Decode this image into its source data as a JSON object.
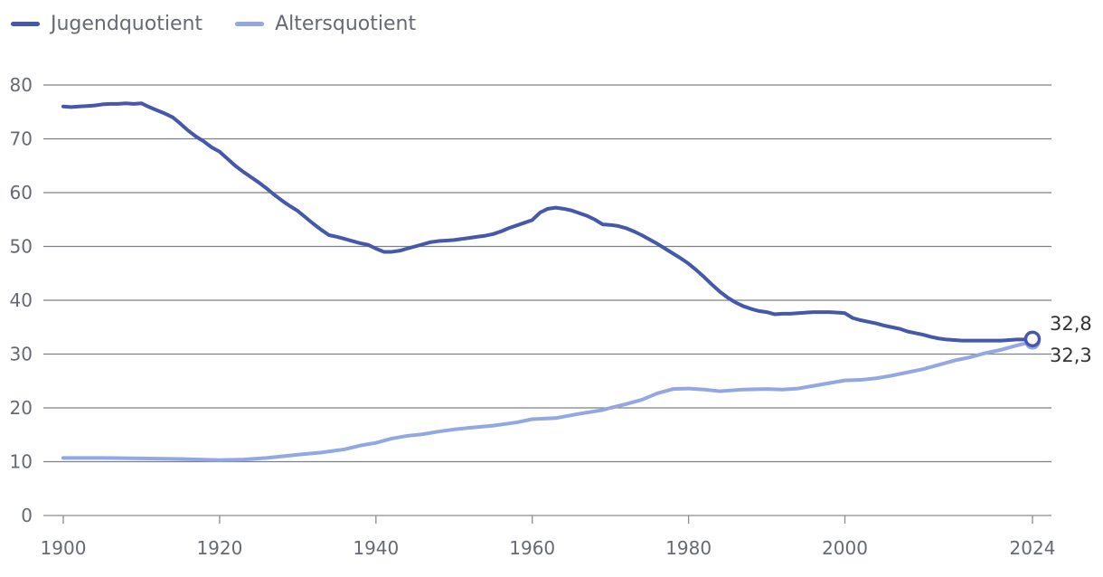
{
  "chart_data": {
    "type": "line",
    "title": "",
    "xlabel": "",
    "ylabel": "",
    "xlim": [
      1900,
      2024
    ],
    "ylim": [
      0,
      80
    ],
    "x_ticks": [
      1900,
      1920,
      1940,
      1960,
      1980,
      2000,
      2024
    ],
    "y_ticks": [
      0,
      10,
      20,
      30,
      40,
      50,
      60,
      70,
      80
    ],
    "x_tick_labels": [
      "1900",
      "1920",
      "1940",
      "1960",
      "1980",
      "2000",
      "2024"
    ],
    "y_tick_labels": [
      "0",
      "10",
      "20",
      "30",
      "40",
      "50",
      "60",
      "70",
      "80"
    ],
    "grid": "horizontal",
    "legend_position": "top-left",
    "series": [
      {
        "name": "Jugendquotient",
        "color": "#4558ab",
        "end_label": "32,8",
        "points": [
          [
            1900,
            76.0
          ],
          [
            1901,
            75.9
          ],
          [
            1902,
            76.0
          ],
          [
            1903,
            76.1
          ],
          [
            1904,
            76.2
          ],
          [
            1905,
            76.4
          ],
          [
            1906,
            76.5
          ],
          [
            1907,
            76.5
          ],
          [
            1908,
            76.6
          ],
          [
            1909,
            76.5
          ],
          [
            1910,
            76.6
          ],
          [
            1911,
            75.9
          ],
          [
            1912,
            75.3
          ],
          [
            1913,
            74.7
          ],
          [
            1914,
            74.0
          ],
          [
            1915,
            72.8
          ],
          [
            1916,
            71.5
          ],
          [
            1917,
            70.4
          ],
          [
            1918,
            69.5
          ],
          [
            1919,
            68.4
          ],
          [
            1920,
            67.6
          ],
          [
            1921,
            66.3
          ],
          [
            1922,
            65.0
          ],
          [
            1923,
            63.9
          ],
          [
            1924,
            62.9
          ],
          [
            1925,
            61.9
          ],
          [
            1926,
            60.8
          ],
          [
            1927,
            59.6
          ],
          [
            1928,
            58.5
          ],
          [
            1929,
            57.5
          ],
          [
            1930,
            56.6
          ],
          [
            1931,
            55.4
          ],
          [
            1932,
            54.2
          ],
          [
            1933,
            53.1
          ],
          [
            1934,
            52.1
          ],
          [
            1935,
            51.8
          ],
          [
            1936,
            51.4
          ],
          [
            1937,
            51.0
          ],
          [
            1938,
            50.6
          ],
          [
            1939,
            50.3
          ],
          [
            1940,
            49.6
          ],
          [
            1941,
            49.0
          ],
          [
            1942,
            49.0
          ],
          [
            1943,
            49.2
          ],
          [
            1944,
            49.6
          ],
          [
            1945,
            50.0
          ],
          [
            1946,
            50.4
          ],
          [
            1947,
            50.8
          ],
          [
            1948,
            51.0
          ],
          [
            1949,
            51.1
          ],
          [
            1950,
            51.2
          ],
          [
            1951,
            51.4
          ],
          [
            1952,
            51.6
          ],
          [
            1953,
            51.8
          ],
          [
            1954,
            52.0
          ],
          [
            1955,
            52.3
          ],
          [
            1956,
            52.8
          ],
          [
            1957,
            53.4
          ],
          [
            1958,
            53.9
          ],
          [
            1959,
            54.4
          ],
          [
            1960,
            54.9
          ],
          [
            1961,
            56.3
          ],
          [
            1962,
            57.0
          ],
          [
            1963,
            57.2
          ],
          [
            1964,
            57.0
          ],
          [
            1965,
            56.7
          ],
          [
            1966,
            56.2
          ],
          [
            1967,
            55.7
          ],
          [
            1968,
            55.0
          ],
          [
            1969,
            54.1
          ],
          [
            1970,
            54.0
          ],
          [
            1971,
            53.8
          ],
          [
            1972,
            53.4
          ],
          [
            1973,
            52.8
          ],
          [
            1974,
            52.1
          ],
          [
            1975,
            51.3
          ],
          [
            1976,
            50.5
          ],
          [
            1977,
            49.6
          ],
          [
            1978,
            48.7
          ],
          [
            1979,
            47.8
          ],
          [
            1980,
            46.8
          ],
          [
            1981,
            45.6
          ],
          [
            1982,
            44.3
          ],
          [
            1983,
            42.9
          ],
          [
            1984,
            41.6
          ],
          [
            1985,
            40.5
          ],
          [
            1986,
            39.6
          ],
          [
            1987,
            38.9
          ],
          [
            1988,
            38.4
          ],
          [
            1989,
            38.0
          ],
          [
            1990,
            37.8
          ],
          [
            1991,
            37.4
          ],
          [
            1992,
            37.5
          ],
          [
            1993,
            37.5
          ],
          [
            1994,
            37.6
          ],
          [
            1995,
            37.7
          ],
          [
            1996,
            37.8
          ],
          [
            1997,
            37.8
          ],
          [
            1998,
            37.8
          ],
          [
            1999,
            37.7
          ],
          [
            2000,
            37.6
          ],
          [
            2001,
            36.7
          ],
          [
            2002,
            36.3
          ],
          [
            2003,
            36.0
          ],
          [
            2004,
            35.7
          ],
          [
            2005,
            35.3
          ],
          [
            2006,
            35.0
          ],
          [
            2007,
            34.7
          ],
          [
            2008,
            34.2
          ],
          [
            2009,
            33.9
          ],
          [
            2010,
            33.6
          ],
          [
            2011,
            33.2
          ],
          [
            2012,
            32.9
          ],
          [
            2013,
            32.7
          ],
          [
            2014,
            32.6
          ],
          [
            2015,
            32.5
          ],
          [
            2016,
            32.5
          ],
          [
            2017,
            32.5
          ],
          [
            2018,
            32.5
          ],
          [
            2019,
            32.5
          ],
          [
            2020,
            32.5
          ],
          [
            2021,
            32.6
          ],
          [
            2022,
            32.7
          ],
          [
            2023,
            32.7
          ],
          [
            2024,
            32.8
          ]
        ]
      },
      {
        "name": "Altersquotient",
        "color": "#93a7e2",
        "end_label": "32,3",
        "points": [
          [
            1900,
            10.7
          ],
          [
            1905,
            10.7
          ],
          [
            1910,
            10.6
          ],
          [
            1915,
            10.5
          ],
          [
            1920,
            10.3
          ],
          [
            1923,
            10.4
          ],
          [
            1926,
            10.7
          ],
          [
            1930,
            11.3
          ],
          [
            1933,
            11.7
          ],
          [
            1936,
            12.3
          ],
          [
            1938,
            13.0
          ],
          [
            1940,
            13.5
          ],
          [
            1942,
            14.3
          ],
          [
            1944,
            14.8
          ],
          [
            1946,
            15.1
          ],
          [
            1948,
            15.6
          ],
          [
            1950,
            16.0
          ],
          [
            1952,
            16.3
          ],
          [
            1955,
            16.7
          ],
          [
            1958,
            17.3
          ],
          [
            1960,
            17.9
          ],
          [
            1963,
            18.1
          ],
          [
            1966,
            18.9
          ],
          [
            1969,
            19.6
          ],
          [
            1970,
            20.0
          ],
          [
            1972,
            20.7
          ],
          [
            1974,
            21.5
          ],
          [
            1976,
            22.7
          ],
          [
            1978,
            23.5
          ],
          [
            1980,
            23.6
          ],
          [
            1982,
            23.4
          ],
          [
            1984,
            23.1
          ],
          [
            1987,
            23.4
          ],
          [
            1990,
            23.5
          ],
          [
            1992,
            23.4
          ],
          [
            1994,
            23.6
          ],
          [
            1996,
            24.1
          ],
          [
            1998,
            24.6
          ],
          [
            2000,
            25.1
          ],
          [
            2002,
            25.2
          ],
          [
            2004,
            25.5
          ],
          [
            2006,
            26.0
          ],
          [
            2008,
            26.6
          ],
          [
            2010,
            27.2
          ],
          [
            2012,
            28.0
          ],
          [
            2014,
            28.8
          ],
          [
            2016,
            29.4
          ],
          [
            2018,
            30.2
          ],
          [
            2020,
            30.8
          ],
          [
            2022,
            31.6
          ],
          [
            2024,
            32.3
          ]
        ]
      }
    ]
  }
}
